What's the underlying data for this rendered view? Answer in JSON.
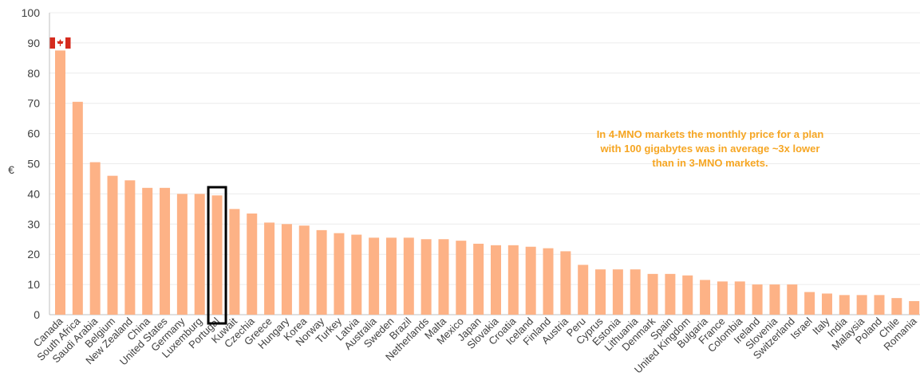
{
  "chart_data": {
    "type": "bar",
    "ylabel": "€",
    "ylim": [
      0,
      100
    ],
    "yticks": [
      0,
      10,
      20,
      30,
      40,
      50,
      60,
      70,
      80,
      90,
      100
    ],
    "grid": true,
    "categories": [
      "Canada",
      "South Africa",
      "Saudi Arabia",
      "Belgium",
      "New Zealand",
      "China",
      "United States",
      "Germany",
      "Luxemburg",
      "Portugal",
      "Kuwait",
      "Czechia",
      "Greece",
      "Hungary",
      "Korea",
      "Norway",
      "Turkey",
      "Latvia",
      "Australia",
      "Sweden",
      "Brazil",
      "Netherlands",
      "Malta",
      "Mexico",
      "Japan",
      "Slovakia",
      "Croatia",
      "Iceland",
      "Finland",
      "Austria",
      "Peru",
      "Cyprus",
      "Estonia",
      "Lithuania",
      "Denmark",
      "Spain",
      "United Kingdom",
      "Bulgaria",
      "France",
      "Colombia",
      "Ireland",
      "Slovenia",
      "Switzerland",
      "Israel",
      "Italy",
      "India",
      "Malaysia",
      "Poland",
      "Chile",
      "Romania"
    ],
    "values": [
      87.5,
      70.5,
      50.5,
      46,
      44.5,
      42,
      42,
      40,
      40,
      39.5,
      35,
      33.5,
      30.5,
      30,
      29.5,
      28,
      27,
      26.5,
      25.5,
      25.5,
      25.5,
      25,
      25,
      24.5,
      23.5,
      23,
      23,
      22.5,
      22,
      21,
      16.5,
      15,
      15,
      15,
      13.5,
      13.5,
      13,
      11.5,
      11,
      11,
      10,
      10,
      10,
      7.5,
      7,
      6.5,
      6.5,
      6.5,
      5.5,
      4.5
    ],
    "highlighted_category": "Portugal",
    "flag_category": "Canada",
    "bar_color": "#fdb286",
    "highlight_border_color": "#000000",
    "annotation": {
      "lines": [
        "In 4-MNO markets the monthly price for a plan",
        "with 100 gigabytes was in average ~3x lower",
        "than in 3-MNO markets."
      ],
      "color": "#f6a623"
    }
  }
}
